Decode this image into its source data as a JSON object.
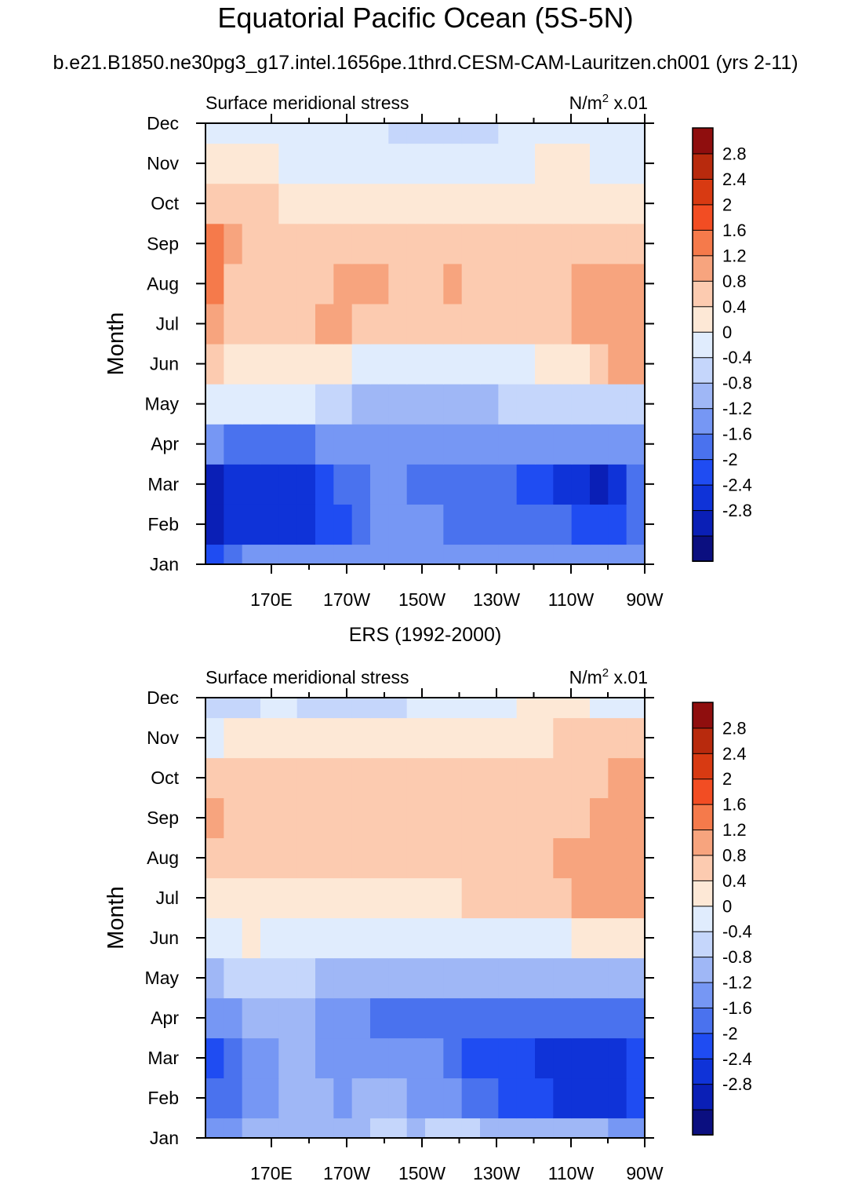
{
  "title": "Equatorial Pacific Ocean (5S-5N)",
  "subtitle": "b.e21.B1850.ne30pg3_g17.intel.1656pe.1thrd.CESM-CAM-Lauritzen.ch001 (yrs 2-11)",
  "chart_data": [
    {
      "type": "heatmap",
      "panel_title": "",
      "left_label": "Surface meridional stress",
      "units": {
        "base": "N/m",
        "power": "2",
        "scale": "x.01"
      },
      "ylabel": "Month",
      "y_ticks": [
        "Jan",
        "Feb",
        "Mar",
        "Apr",
        "May",
        "Jun",
        "Jul",
        "Aug",
        "Sep",
        "Oct",
        "Nov",
        "Dec"
      ],
      "x_ticks": [
        "170E",
        "170W",
        "150W",
        "130W",
        "110W",
        "90W"
      ],
      "x_range": [
        "155E",
        "90W"
      ],
      "x_columns": [
        "155E",
        "160E",
        "165E",
        "170E",
        "175E",
        "180",
        "175W",
        "170W",
        "165W",
        "160W",
        "155W",
        "150W",
        "145W",
        "140W",
        "135W",
        "130W",
        "125W",
        "120W",
        "115W",
        "110W",
        "105W",
        "100W",
        "95W",
        "90W"
      ],
      "values": [
        [
          -2.0,
          -1.4,
          -1.2,
          -1.2,
          -1.2,
          -1.2,
          -1.2,
          -1.2,
          -1.2,
          -1.2,
          -1.0,
          -1.0,
          -1.0,
          -0.9,
          -0.9,
          -0.9,
          -0.9,
          -0.9,
          -0.9,
          -0.9,
          -0.9,
          -0.9,
          -0.9,
          -1.2
        ],
        [
          -2.6,
          -2.4,
          -2.3,
          -2.2,
          -2.2,
          -2.2,
          -1.9,
          -1.7,
          -1.4,
          -1.2,
          -1.1,
          -1.1,
          -1.2,
          -1.3,
          -1.3,
          -1.3,
          -1.4,
          -1.4,
          -1.4,
          -1.5,
          -1.7,
          -1.9,
          -2.0,
          -1.6
        ],
        [
          -2.6,
          -2.3,
          -2.1,
          -2.1,
          -2.2,
          -2.2,
          -1.9,
          -1.6,
          -1.3,
          -1.1,
          -1.2,
          -1.5,
          -1.6,
          -1.6,
          -1.6,
          -1.6,
          -1.6,
          -1.7,
          -1.9,
          -2.1,
          -2.3,
          -2.5,
          -2.2,
          -1.6
        ],
        [
          -1.2,
          -1.3,
          -1.3,
          -1.3,
          -1.3,
          -1.3,
          -1.2,
          -1.1,
          -1.0,
          -1.0,
          -1.0,
          -1.1,
          -1.1,
          -1.1,
          -1.1,
          -1.1,
          -1.0,
          -1.0,
          -1.1,
          -1.2,
          -1.2,
          -1.2,
          -1.2,
          -1.2
        ],
        [
          0.1,
          0.2,
          0.2,
          0.2,
          0.2,
          0.1,
          -0.2,
          -0.4,
          -0.5,
          -0.6,
          -0.7,
          -0.7,
          -0.7,
          -0.6,
          -0.6,
          -0.5,
          -0.4,
          -0.3,
          -0.2,
          -0.2,
          -0.2,
          -0.2,
          -0.1,
          -0.2
        ],
        [
          0.8,
          0.5,
          0.5,
          0.5,
          0.5,
          0.5,
          0.4,
          0.4,
          0.3,
          0.2,
          0.1,
          0.1,
          0.1,
          0.1,
          0.1,
          0.2,
          0.3,
          0.3,
          0.4,
          0.5,
          0.6,
          0.8,
          1.2,
          1.4
        ],
        [
          1.4,
          1.0,
          1.0,
          1.0,
          1.0,
          1.1,
          1.2,
          1.2,
          1.1,
          1.0,
          0.9,
          0.8,
          0.8,
          0.8,
          0.8,
          0.8,
          0.9,
          0.9,
          1.0,
          1.1,
          1.3,
          1.4,
          1.5,
          1.5
        ],
        [
          1.6,
          1.0,
          1.0,
          1.0,
          1.0,
          1.0,
          1.1,
          1.2,
          1.2,
          1.2,
          1.1,
          1.0,
          1.1,
          1.3,
          1.0,
          1.0,
          1.0,
          1.0,
          1.0,
          1.1,
          1.2,
          1.3,
          1.3,
          1.3
        ],
        [
          1.8,
          1.4,
          1.0,
          1.0,
          1.0,
          1.0,
          1.0,
          1.0,
          1.0,
          1.0,
          1.0,
          1.0,
          1.0,
          1.0,
          1.0,
          1.0,
          1.0,
          0.9,
          0.9,
          0.9,
          0.9,
          0.9,
          0.8,
          0.8
        ],
        [
          1.0,
          0.8,
          0.8,
          0.8,
          0.7,
          0.7,
          0.7,
          0.6,
          0.6,
          0.6,
          0.6,
          0.6,
          0.6,
          0.6,
          0.5,
          0.5,
          0.5,
          0.5,
          0.5,
          0.6,
          0.6,
          0.6,
          0.5,
          0.6
        ],
        [
          0.4,
          0.4,
          0.4,
          0.4,
          0.3,
          0.3,
          0.3,
          0.3,
          0.3,
          0.3,
          0.3,
          0.3,
          0.2,
          0.2,
          0.2,
          0.2,
          0.3,
          0.3,
          0.4,
          0.5,
          0.4,
          0.3,
          0.2,
          0.3
        ],
        [
          0.1,
          0.1,
          0.1,
          0.1,
          0.1,
          0.1,
          0.1,
          0.1,
          0.0,
          0.0,
          -0.1,
          -0.1,
          -0.2,
          -0.2,
          -0.2,
          -0.1,
          0.1,
          0.1,
          0.1,
          0.1,
          0.1,
          0.1,
          0.1,
          0.0
        ]
      ]
    },
    {
      "type": "heatmap",
      "panel_title": "ERS (1992-2000)",
      "left_label": "Surface meridional stress",
      "units": {
        "base": "N/m",
        "power": "2",
        "scale": "x.01"
      },
      "ylabel": "Month",
      "y_ticks": [
        "Jan",
        "Feb",
        "Mar",
        "Apr",
        "May",
        "Jun",
        "Jul",
        "Aug",
        "Sep",
        "Oct",
        "Nov",
        "Dec"
      ],
      "x_ticks": [
        "170E",
        "170W",
        "150W",
        "130W",
        "110W",
        "90W"
      ],
      "x_range": [
        "155E",
        "90W"
      ],
      "x_columns": [
        "155E",
        "160E",
        "165E",
        "170E",
        "175E",
        "180",
        "175W",
        "170W",
        "165W",
        "160W",
        "155W",
        "150W",
        "145W",
        "140W",
        "135W",
        "130W",
        "125W",
        "120W",
        "115W",
        "110W",
        "105W",
        "100W",
        "95W",
        "90W"
      ],
      "values": [
        [
          -1.0,
          -0.9,
          -0.8,
          -0.7,
          -0.6,
          -0.5,
          -0.6,
          -0.7,
          -0.5,
          -0.3,
          -0.4,
          -0.5,
          -0.4,
          -0.3,
          -0.3,
          -0.5,
          -0.6,
          -0.7,
          -0.7,
          -0.7,
          -0.8,
          -0.8,
          -0.9,
          -1.0
        ],
        [
          -1.6,
          -1.3,
          -1.0,
          -0.9,
          -0.7,
          -0.6,
          -0.8,
          -0.9,
          -0.8,
          -0.7,
          -0.8,
          -0.9,
          -1.0,
          -1.2,
          -1.3,
          -1.5,
          -1.7,
          -1.9,
          -2.0,
          -2.1,
          -2.2,
          -2.2,
          -2.1,
          -1.8
        ],
        [
          -1.8,
          -1.5,
          -1.2,
          -0.9,
          -0.7,
          -0.7,
          -0.9,
          -1.0,
          -0.9,
          -0.9,
          -1.0,
          -1.1,
          -1.2,
          -1.5,
          -1.7,
          -1.8,
          -1.9,
          -2.0,
          -2.1,
          -2.2,
          -2.2,
          -2.3,
          -2.2,
          -2.0
        ],
        [
          -0.9,
          -0.9,
          -0.8,
          -0.8,
          -0.8,
          -0.8,
          -0.9,
          -1.1,
          -1.2,
          -1.3,
          -1.3,
          -1.4,
          -1.4,
          -1.3,
          -1.4,
          -1.6,
          -1.6,
          -1.5,
          -1.5,
          -1.4,
          -1.4,
          -1.3,
          -1.3,
          -1.3
        ],
        [
          -0.5,
          -0.4,
          -0.4,
          -0.3,
          -0.3,
          -0.4,
          -0.5,
          -0.6,
          -0.6,
          -0.6,
          -0.7,
          -0.7,
          -0.7,
          -0.6,
          -0.5,
          -0.5,
          -0.5,
          -0.5,
          -0.5,
          -0.5,
          -0.6,
          -0.5,
          -0.6,
          -0.6
        ],
        [
          0.3,
          0.3,
          0.4,
          0.3,
          0.3,
          0.3,
          0.2,
          0.2,
          0.2,
          0.2,
          0.2,
          0.1,
          0.1,
          0.1,
          0.1,
          0.1,
          0.1,
          0.2,
          0.2,
          0.3,
          0.4,
          0.5,
          0.6,
          0.6
        ],
        [
          0.7,
          0.7,
          0.7,
          0.7,
          0.7,
          0.6,
          0.6,
          0.6,
          0.6,
          0.6,
          0.6,
          0.7,
          0.7,
          0.7,
          0.8,
          0.8,
          0.9,
          0.9,
          1.0,
          1.1,
          1.3,
          1.4,
          1.4,
          1.3
        ],
        [
          0.9,
          0.9,
          0.9,
          0.9,
          1.0,
          1.0,
          1.0,
          1.0,
          1.0,
          0.9,
          1.0,
          1.0,
          1.0,
          1.0,
          1.0,
          1.0,
          1.0,
          1.0,
          1.0,
          1.2,
          1.4,
          1.4,
          1.4,
          1.3
        ],
        [
          1.3,
          1.0,
          0.9,
          0.9,
          1.1,
          1.1,
          0.9,
          0.9,
          1.0,
          1.0,
          1.0,
          1.0,
          1.0,
          0.9,
          0.9,
          0.9,
          0.9,
          1.0,
          1.0,
          1.0,
          1.1,
          1.2,
          1.3,
          1.3
        ],
        [
          0.8,
          0.9,
          0.9,
          0.8,
          0.9,
          0.9,
          0.9,
          0.9,
          1.0,
          1.0,
          1.0,
          1.0,
          0.9,
          0.9,
          0.9,
          0.9,
          0.8,
          0.8,
          0.9,
          0.9,
          1.0,
          1.1,
          1.3,
          1.3
        ],
        [
          0.3,
          0.4,
          0.5,
          0.5,
          0.5,
          0.5,
          0.5,
          0.5,
          0.5,
          0.4,
          0.4,
          0.4,
          0.4,
          0.4,
          0.5,
          0.5,
          0.6,
          0.6,
          0.7,
          0.8,
          0.8,
          0.9,
          1.0,
          1.0
        ],
        [
          -0.3,
          -0.2,
          -0.1,
          0.1,
          0.1,
          -0.1,
          -0.2,
          -0.2,
          -0.3,
          -0.3,
          -0.2,
          0.1,
          0.1,
          0.1,
          0.1,
          0.2,
          0.3,
          0.4,
          0.5,
          0.5,
          0.4,
          0.3,
          0.2,
          0.2
        ]
      ]
    }
  ],
  "colorbar": {
    "labels": [
      "2.8",
      "2.4",
      "2",
      "1.6",
      "1.2",
      "0.8",
      "0.4",
      "0",
      "-0.4",
      "-0.8",
      "-1.2",
      "-1.6",
      "-2",
      "-2.4",
      "-2.8"
    ],
    "levels": [
      -2.8,
      -2.4,
      -2.0,
      -1.6,
      -1.2,
      -0.8,
      -0.4,
      0.0,
      0.4,
      0.8,
      1.2,
      1.6,
      2.0,
      2.4,
      2.8
    ],
    "colors_bottom_to_top": [
      "#0b0f80",
      "#0a1fb6",
      "#0f33d8",
      "#1f4cf2",
      "#4a72ee",
      "#7697f4",
      "#9fb7f6",
      "#c5d6fb",
      "#e0ecfd",
      "#fde8d6",
      "#fccbb0",
      "#f7a47e",
      "#f57a4b",
      "#f24d23",
      "#d83a12",
      "#b82a0d",
      "#8f0e0e"
    ]
  }
}
